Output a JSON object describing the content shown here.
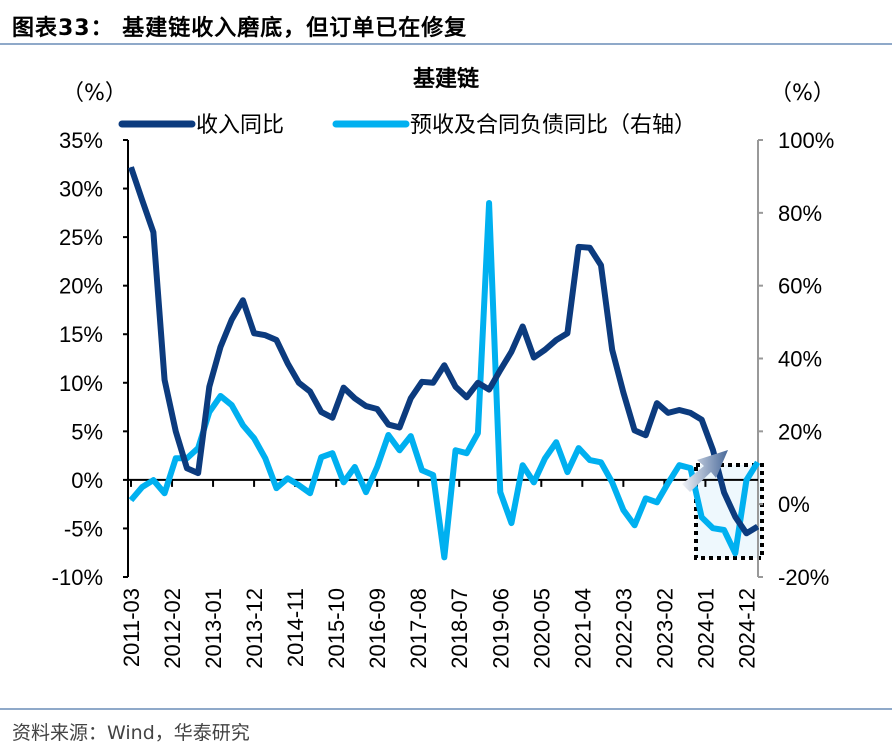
{
  "figure_title": "图表33：  基建链收入磨底，但订单已在修复",
  "source": "资料来源：Wind，华泰研究",
  "colors": {
    "revenue": "#0c3b7e",
    "advance": "#00b0f0",
    "rule": "#8fa9c9",
    "highlight_box_fill": "#eef8fd"
  },
  "chart_data": {
    "type": "line",
    "title": "基建链",
    "ylabel_left": "（%）",
    "ylabel_right": "（%）",
    "ylim_left": [
      -10,
      35
    ],
    "ylim_right": [
      -20,
      100
    ],
    "yticks_left": [
      "35%",
      "30%",
      "25%",
      "20%",
      "15%",
      "10%",
      "5%",
      "0%",
      "-5%",
      "-10%"
    ],
    "yticks_right": [
      "100%",
      "80%",
      "60%",
      "40%",
      "20%",
      "0%",
      "-20%"
    ],
    "xticks": [
      "2011-03",
      "2012-02",
      "2013-01",
      "2013-12",
      "2014-11",
      "2015-10",
      "2016-09",
      "2017-08",
      "2018-07",
      "2019-06",
      "2020-05",
      "2021-04",
      "2022-03",
      "2023-02",
      "2024-01",
      "2024-12"
    ],
    "legend_placement": "top",
    "grid": false,
    "x": [
      "2011-03",
      "2011-06",
      "2011-09",
      "2011-12",
      "2012-03",
      "2012-06",
      "2012-09",
      "2012-12",
      "2013-03",
      "2013-06",
      "2013-09",
      "2013-12",
      "2014-03",
      "2014-06",
      "2014-09",
      "2014-12",
      "2015-03",
      "2015-06",
      "2015-09",
      "2015-12",
      "2016-03",
      "2016-06",
      "2016-09",
      "2016-12",
      "2017-03",
      "2017-06",
      "2017-09",
      "2017-12",
      "2018-03",
      "2018-06",
      "2018-09",
      "2018-12",
      "2019-03",
      "2019-06",
      "2019-09",
      "2019-12",
      "2020-03",
      "2020-06",
      "2020-09",
      "2020-12",
      "2021-03",
      "2021-06",
      "2021-09",
      "2021-12",
      "2022-03",
      "2022-06",
      "2022-09",
      "2022-12",
      "2023-03",
      "2023-06",
      "2023-09",
      "2023-12",
      "2024-03",
      "2024-06",
      "2024-09",
      "2024-12",
      "2025-03"
    ],
    "series": [
      {
        "name": "收入同比",
        "axis": "left",
        "values": [
          32.2,
          28.8,
          25.5,
          10.3,
          5.0,
          1.2,
          0.7,
          9.6,
          13.7,
          16.5,
          18.5,
          15.1,
          14.9,
          14.4,
          12.0,
          10.0,
          9.1,
          7.0,
          6.4,
          9.5,
          8.4,
          7.6,
          7.3,
          5.7,
          5.4,
          8.4,
          10.1,
          10.0,
          11.8,
          9.6,
          8.5,
          10.0,
          9.3,
          11.3,
          13.2,
          15.8,
          12.6,
          13.4,
          14.4,
          15.1,
          24.0,
          23.9,
          22.1,
          13.4,
          9.0,
          5.1,
          4.6,
          7.9,
          6.9,
          7.2,
          6.9,
          6.2,
          3.1,
          -1.3,
          -3.8,
          -5.5,
          -4.8
        ]
      },
      {
        "name": "预收及合同负债同比（右轴）",
        "axis": "right",
        "values": [
          1.1,
          4.7,
          6.6,
          3.0,
          12.6,
          12.6,
          15.4,
          25.3,
          29.7,
          27.2,
          21.7,
          18.1,
          12.6,
          4.4,
          7.1,
          5.2,
          3.0,
          12.9,
          14.0,
          6.0,
          10.2,
          3.3,
          10.2,
          19.0,
          14.8,
          18.7,
          9.3,
          8.0,
          -14.6,
          14.8,
          14.0,
          19.5,
          82.7,
          3.3,
          -5.2,
          10.7,
          6.0,
          12.6,
          17.0,
          8.8,
          15.4,
          12.1,
          11.5,
          6.0,
          -1.6,
          -5.8,
          1.6,
          0.5,
          5.8,
          10.7,
          9.9,
          -3.6,
          -6.6,
          -7.1,
          -13.5,
          6.6,
          11.5
        ]
      }
    ]
  }
}
